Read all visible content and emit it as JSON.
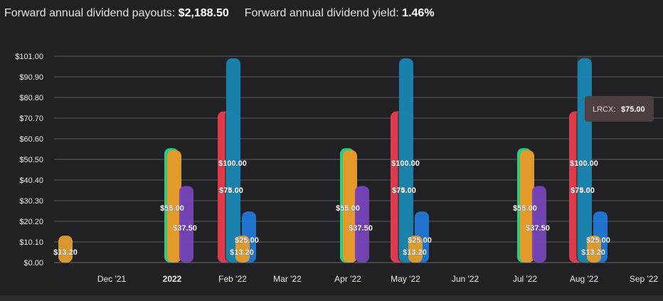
{
  "summary": {
    "payouts_label": "Forward annual dividend payouts:",
    "payouts_value": "$2,188.50",
    "yield_label": "Forward annual dividend yield:",
    "yield_value": "1.46%"
  },
  "tooltip": {
    "ticker": "LRCX:",
    "value": "$75.00"
  },
  "colors": {
    "background": "#212125",
    "grid": "#5a5a60",
    "text": "#e9e9ec",
    "orange": "#dd9b2f",
    "green": "#2fcf86",
    "amber": "#e99a2a",
    "purple": "#7443b5",
    "red": "#e33a4e",
    "charcoal": "#4a3d3d",
    "teal": "#1883ad",
    "blue": "#2176d2",
    "tooltip": "#4e4040"
  },
  "chart_data": {
    "type": "bar",
    "ylim": [
      0,
      101
    ],
    "y_ticks": [
      {
        "value": 0,
        "label": "$0.00"
      },
      {
        "value": 10.1,
        "label": "$10.10"
      },
      {
        "value": 20.2,
        "label": "$20.20"
      },
      {
        "value": 30.3,
        "label": "$30.30"
      },
      {
        "value": 40.4,
        "label": "$40.40"
      },
      {
        "value": 50.5,
        "label": "$50.50"
      },
      {
        "value": 60.6,
        "label": "$60.60"
      },
      {
        "value": 70.7,
        "label": "$70.70"
      },
      {
        "value": 80.8,
        "label": "$80.80"
      },
      {
        "value": 90.9,
        "label": "$90.90"
      },
      {
        "value": 101.0,
        "label": "$101.00"
      }
    ],
    "categories": [
      {
        "label": "",
        "bold": false
      },
      {
        "label": "Dec '21",
        "bold": false
      },
      {
        "label": "2022",
        "bold": true
      },
      {
        "label": "Feb '22",
        "bold": false
      },
      {
        "label": "Mar '22",
        "bold": false
      },
      {
        "label": "Apr '22",
        "bold": false
      },
      {
        "label": "May '22",
        "bold": false
      },
      {
        "label": "Jun '22",
        "bold": false
      },
      {
        "label": "Jul '22",
        "bold": false
      },
      {
        "label": "Aug '22",
        "bold": false
      },
      {
        "label": "Sep '22",
        "bold": false
      }
    ],
    "bars": [
      {
        "category": 0,
        "color": "orange",
        "value": 13.2,
        "label": "$13.20"
      },
      {
        "category": 2,
        "color": "green",
        "value": 56.0,
        "label": "$56.00"
      },
      {
        "category": 2,
        "color": "amber",
        "value": 55.0,
        "label": "$55.00"
      },
      {
        "category": 2,
        "color": "purple",
        "value": 37.5,
        "label": "$37.50"
      },
      {
        "category": 3,
        "color": "red",
        "value": 74.0,
        "label": "$74.00"
      },
      {
        "category": 3,
        "color": "charcoal",
        "value": 75.0,
        "label": "$75.00"
      },
      {
        "category": 3,
        "color": "teal",
        "value": 100.0,
        "label": "$100.00"
      },
      {
        "category": 3,
        "color": "orange",
        "value": 13.2,
        "label": "$13.20"
      },
      {
        "category": 3,
        "color": "blue",
        "value": 25.0,
        "label": "$25.00"
      },
      {
        "category": 5,
        "color": "green",
        "value": 56.0,
        "label": "$56.00"
      },
      {
        "category": 5,
        "color": "amber",
        "value": 55.0,
        "label": "$55.00"
      },
      {
        "category": 5,
        "color": "purple",
        "value": 37.5,
        "label": "$37.50"
      },
      {
        "category": 6,
        "color": "red",
        "value": 74.0,
        "label": "$74.00"
      },
      {
        "category": 6,
        "color": "charcoal",
        "value": 75.0,
        "label": "$75.00"
      },
      {
        "category": 6,
        "color": "teal",
        "value": 100.0,
        "label": "$100.00"
      },
      {
        "category": 6,
        "color": "orange",
        "value": 13.2,
        "label": "$13.20"
      },
      {
        "category": 6,
        "color": "blue",
        "value": 25.0,
        "label": "$25.00"
      },
      {
        "category": 8,
        "color": "green",
        "value": 56.0,
        "label": "$56.00"
      },
      {
        "category": 8,
        "color": "amber",
        "value": 55.0,
        "label": "$55.00"
      },
      {
        "category": 8,
        "color": "purple",
        "value": 37.5,
        "label": "$37.50"
      },
      {
        "category": 9,
        "color": "red",
        "value": 74.0,
        "label": "$74.00"
      },
      {
        "category": 9,
        "color": "charcoal",
        "value": 75.0,
        "label": "$75.00"
      },
      {
        "category": 9,
        "color": "teal",
        "value": 100.0,
        "label": "$100.00"
      },
      {
        "category": 9,
        "color": "orange",
        "value": 13.2,
        "label": "$13.20"
      },
      {
        "category": 9,
        "color": "blue",
        "value": 25.0,
        "label": "$25.00"
      }
    ]
  }
}
